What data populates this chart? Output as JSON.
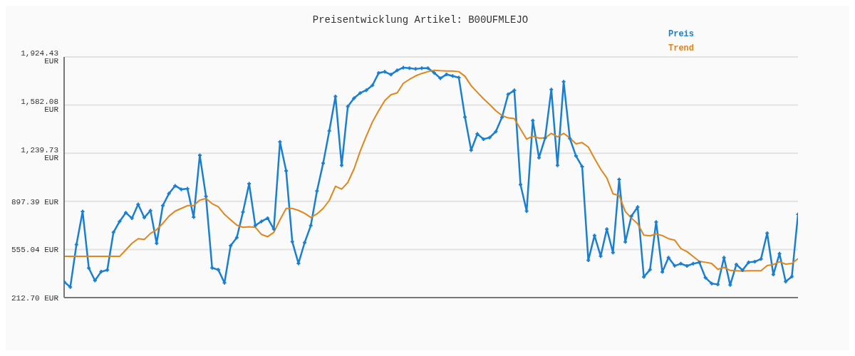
{
  "chart_data": {
    "type": "line",
    "title": "Preisentwicklung Artikel: B00UFMLEJO",
    "categories": [
      null,
      null,
      null,
      null,
      null,
      null,
      null,
      null,
      null,
      null,
      null,
      null,
      null,
      null,
      null,
      null,
      null,
      null,
      null,
      null,
      null,
      null,
      null,
      null,
      null,
      null,
      null,
      null,
      null,
      null,
      null,
      null,
      null,
      null,
      null,
      null,
      null,
      null,
      null,
      null,
      null,
      null,
      null,
      null,
      null,
      null,
      null,
      null,
      null,
      null,
      null,
      null,
      null,
      null,
      null,
      null,
      null,
      null,
      null,
      null,
      null,
      null,
      null,
      null,
      null,
      null,
      null,
      null,
      null,
      null,
      null,
      null,
      null,
      null,
      null,
      null,
      null,
      null,
      null,
      null,
      null,
      null,
      null,
      null,
      null,
      null,
      null,
      null,
      null,
      null,
      null,
      null,
      null,
      null,
      null,
      null,
      null,
      null,
      null,
      null,
      null,
      null,
      null,
      null,
      null,
      null,
      null,
      null,
      null,
      null,
      null,
      null,
      null,
      null,
      null,
      null,
      null,
      null,
      null,
      null
    ],
    "series": [
      {
        "name": "Preis",
        "color": "#1a7fd0",
        "marker": "cross",
        "values": [
          325,
          288,
          590,
          825,
          423,
          334,
          397,
          409,
          677,
          755,
          817,
          777,
          876,
          782,
          832,
          599,
          867,
          953,
          1008,
          983,
          988,
          785,
          1225,
          933,
          424,
          411,
          318,
          582,
          639,
          822,
          1023,
          725,
          755,
          778,
          700,
          1320,
          1114,
          610,
          456,
          604,
          725,
          971,
          1168,
          1399,
          1643,
          1153,
          1572,
          1631,
          1668,
          1688,
          1723,
          1810,
          1819,
          1799,
          1829,
          1849,
          1845,
          1839,
          1845,
          1845,
          1812,
          1773,
          1800,
          1789,
          1778,
          1497,
          1261,
          1377,
          1340,
          1351,
          1394,
          1495,
          1658,
          1688,
          1017,
          828,
          1473,
          1208,
          1349,
          1693,
          1153,
          1748,
          1345,
          1220,
          1144,
          478,
          654,
          508,
          700,
          533,
          1053,
          609,
          793,
          857,
          360,
          411,
          751,
          395,
          498,
          439,
          454,
          438,
          454,
          463,
          354,
          313,
          307,
          498,
          302,
          448,
          408,
          464,
          468,
          488,
          671,
          377,
          525,
          327,
          362,
          805
        ]
      },
      {
        "name": "Trend",
        "color": "#e0861a",
        "marker": "none",
        "values": [
          506,
          506,
          506,
          506,
          506,
          506,
          506,
          506,
          506,
          506,
          552,
          599,
          632,
          627,
          669,
          696,
          741,
          792,
          828,
          847,
          867,
          867,
          906,
          918,
          881,
          859,
          805,
          766,
          728,
          713,
          716,
          713,
          662,
          646,
          677,
          766,
          847,
          847,
          833,
          812,
          783,
          808,
          847,
          904,
          1005,
          984,
          1032,
          1127,
          1253,
          1362,
          1463,
          1542,
          1614,
          1656,
          1669,
          1737,
          1765,
          1790,
          1807,
          1820,
          1830,
          1827,
          1825,
          1825,
          1820,
          1787,
          1720,
          1673,
          1627,
          1586,
          1542,
          1508,
          1491,
          1486,
          1412,
          1340,
          1361,
          1347,
          1349,
          1381,
          1356,
          1381,
          1349,
          1307,
          1315,
          1284,
          1203,
          1127,
          1064,
          951,
          939,
          825,
          778,
          738,
          657,
          652,
          666,
          654,
          632,
          622,
          562,
          540,
          505,
          471,
          464,
          456,
          414,
          428,
          406,
          404,
          401,
          404,
          404,
          404,
          441,
          448,
          468,
          451,
          456,
          490
        ]
      }
    ],
    "ylim": [
      212.7,
      1924.43
    ],
    "yticks": [
      {
        "value": 212.7,
        "label": "212.70 EUR"
      },
      {
        "value": 555.04,
        "label": "555.04 EUR"
      },
      {
        "value": 897.39,
        "label": "897.39 EUR"
      },
      {
        "value": 1239.73,
        "label": "1,239.73 EUR"
      },
      {
        "value": 1582.08,
        "label": "1,582.08 EUR"
      },
      {
        "value": 1924.43,
        "label": "1,924.43 EUR"
      }
    ],
    "grid": "y",
    "legend": "top right",
    "line_style": "solid",
    "tick_labels": "y"
  }
}
